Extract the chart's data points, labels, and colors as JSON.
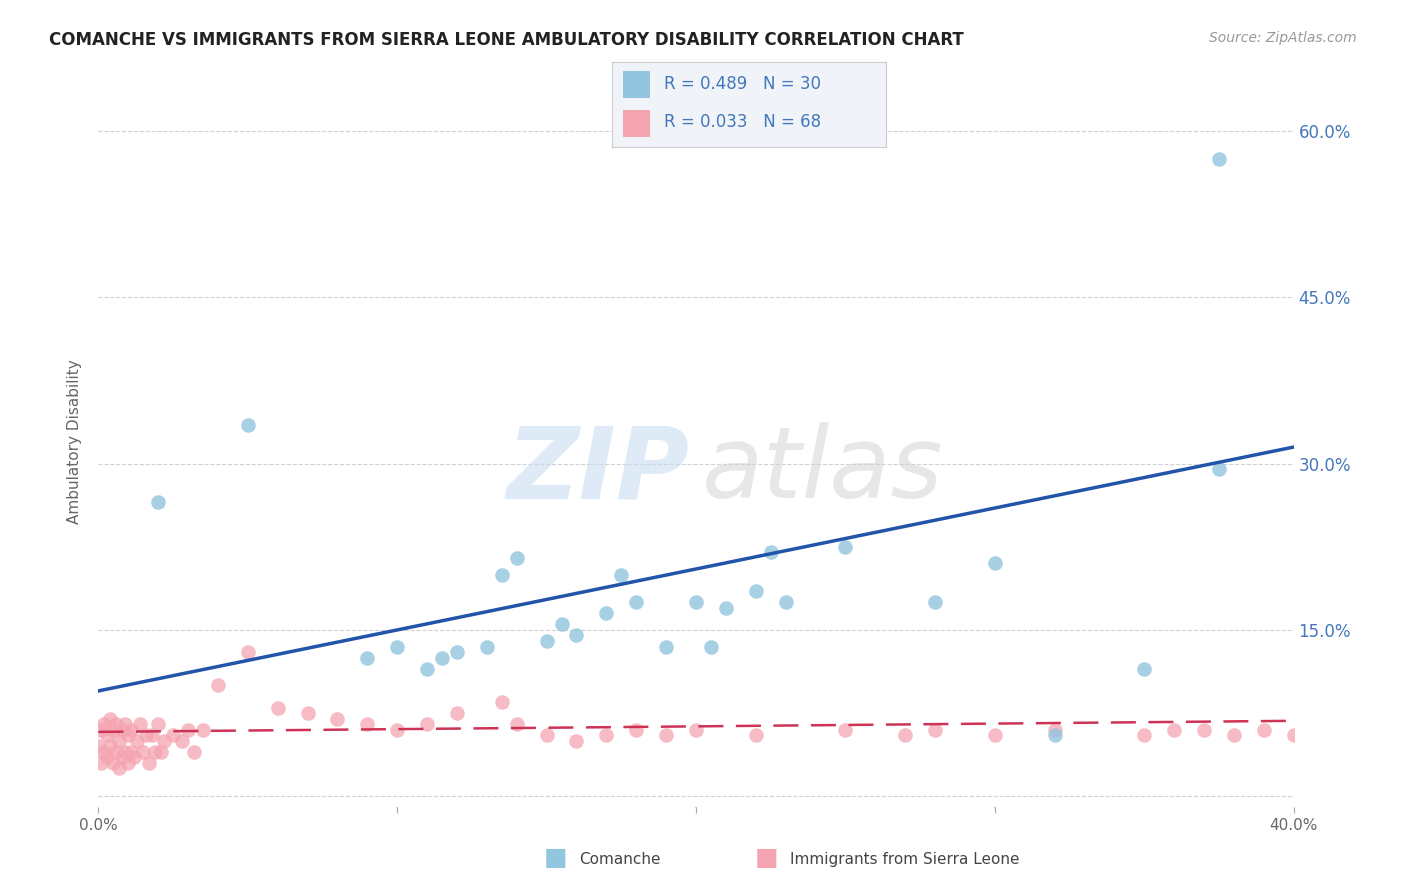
{
  "title": "COMANCHE VS IMMIGRANTS FROM SIERRA LEONE AMBULATORY DISABILITY CORRELATION CHART",
  "source": "Source: ZipAtlas.com",
  "ylabel": "Ambulatory Disability",
  "xlim": [
    0.0,
    0.4
  ],
  "ylim": [
    -0.01,
    0.65
  ],
  "blue_color": "#92c5de",
  "pink_color": "#f4a4b0",
  "blue_line_color": "#2255aa",
  "pink_line_color": "#cc3355",
  "legend_box_bg": "#f0f4f8",
  "legend_box_border": "#cccccc",
  "watermark_zip_color": "#c8ddf0",
  "watermark_atlas_color": "#d0d0d0",
  "background_color": "#ffffff",
  "grid_color": "#cccccc",
  "right_tick_color": "#4477bb",
  "title_color": "#222222",
  "source_color": "#999999",
  "ylabel_color": "#666666",
  "blue_line_x0": 0.0,
  "blue_line_y0": 0.095,
  "blue_line_x1": 0.4,
  "blue_line_y1": 0.315,
  "pink_line_x0": 0.0,
  "pink_line_y0": 0.058,
  "pink_line_x1": 0.4,
  "pink_line_y1": 0.068,
  "blue_x": [
    0.02,
    0.05,
    0.09,
    0.1,
    0.11,
    0.115,
    0.12,
    0.13,
    0.135,
    0.14,
    0.15,
    0.155,
    0.16,
    0.17,
    0.175,
    0.18,
    0.19,
    0.2,
    0.205,
    0.21,
    0.22,
    0.225,
    0.23,
    0.25,
    0.28,
    0.3,
    0.32,
    0.35,
    0.375,
    0.375
  ],
  "blue_y": [
    0.265,
    0.335,
    0.125,
    0.135,
    0.115,
    0.125,
    0.13,
    0.135,
    0.2,
    0.215,
    0.14,
    0.155,
    0.145,
    0.165,
    0.2,
    0.175,
    0.135,
    0.175,
    0.135,
    0.17,
    0.185,
    0.22,
    0.175,
    0.225,
    0.175,
    0.21,
    0.055,
    0.115,
    0.575,
    0.295
  ],
  "pink_x": [
    0.0,
    0.001,
    0.001,
    0.002,
    0.002,
    0.003,
    0.003,
    0.004,
    0.004,
    0.005,
    0.005,
    0.006,
    0.006,
    0.007,
    0.007,
    0.008,
    0.008,
    0.009,
    0.009,
    0.01,
    0.01,
    0.011,
    0.011,
    0.012,
    0.013,
    0.014,
    0.015,
    0.016,
    0.017,
    0.018,
    0.019,
    0.02,
    0.021,
    0.022,
    0.025,
    0.028,
    0.03,
    0.032,
    0.035,
    0.04,
    0.05,
    0.06,
    0.07,
    0.08,
    0.09,
    0.1,
    0.11,
    0.12,
    0.135,
    0.14,
    0.15,
    0.16,
    0.17,
    0.18,
    0.19,
    0.2,
    0.22,
    0.25,
    0.27,
    0.28,
    0.3,
    0.32,
    0.35,
    0.37,
    0.38,
    0.39,
    0.4,
    0.36
  ],
  "pink_y": [
    0.045,
    0.03,
    0.06,
    0.04,
    0.065,
    0.035,
    0.055,
    0.045,
    0.07,
    0.03,
    0.06,
    0.04,
    0.065,
    0.025,
    0.05,
    0.035,
    0.06,
    0.04,
    0.065,
    0.03,
    0.055,
    0.04,
    0.06,
    0.035,
    0.05,
    0.065,
    0.04,
    0.055,
    0.03,
    0.055,
    0.04,
    0.065,
    0.04,
    0.05,
    0.055,
    0.05,
    0.06,
    0.04,
    0.06,
    0.1,
    0.13,
    0.08,
    0.075,
    0.07,
    0.065,
    0.06,
    0.065,
    0.075,
    0.085,
    0.065,
    0.055,
    0.05,
    0.055,
    0.06,
    0.055,
    0.06,
    0.055,
    0.06,
    0.055,
    0.06,
    0.055,
    0.06,
    0.055,
    0.06,
    0.055,
    0.06,
    0.055,
    0.06
  ]
}
